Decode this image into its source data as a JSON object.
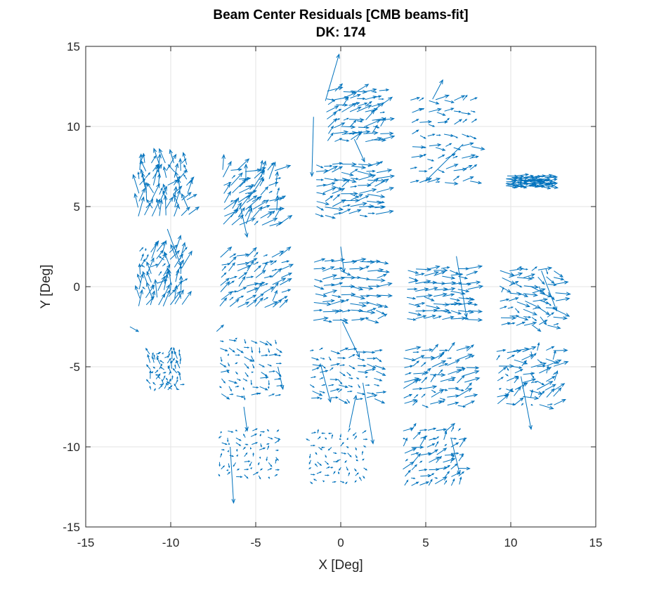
{
  "chart_data": {
    "type": "quiver",
    "title": "Beam Center Residuals [CMB beams-fit]",
    "subtitle": "DK: 174",
    "xlabel": "X [Deg]",
    "ylabel": "Y [Deg]",
    "xlim": [
      -15,
      15
    ],
    "ylim": [
      -15,
      15
    ],
    "xticks": [
      -15,
      -10,
      -5,
      0,
      5,
      10,
      15
    ],
    "yticks": [
      -15,
      -10,
      -5,
      0,
      5,
      10,
      15
    ],
    "grid": true,
    "arrow_color": "#0072BD",
    "tiles": [
      {
        "name": "r1c1",
        "xmin": -12.1,
        "xmax": -8.8,
        "ymin": 4.2,
        "ymax": 7.9,
        "dx": 0.12,
        "dy": 0.75,
        "var": 0.5
      },
      {
        "name": "r1c2",
        "xmin": -7.1,
        "xmax": -3.6,
        "ymin": 3.6,
        "ymax": 7.5,
        "dx": 0.45,
        "dy": 0.55,
        "var": 0.5
      },
      {
        "name": "r1c3",
        "xmin": -1.7,
        "xmax": 2.3,
        "ymin": 4.3,
        "ymax": 7.8,
        "dx": 0.7,
        "dy": 0.1,
        "var": 0.35
      },
      {
        "name": "r1c4",
        "xmin": -1.0,
        "xmax": 2.5,
        "ymin": 8.9,
        "ymax": 12.4,
        "dx": 0.6,
        "dy": 0.25,
        "var": 0.35
      },
      {
        "name": "r1c5",
        "xmin": 3.9,
        "xmax": 7.9,
        "ymin": 6.2,
        "ymax": 12.0,
        "dx": 0.5,
        "dy": 0.1,
        "var": 0.3
      },
      {
        "name": "r1c6",
        "xmin": 9.6,
        "xmax": 12.2,
        "ymin": 6.2,
        "ymax": 6.9,
        "dx": 0.6,
        "dy": 0.0,
        "var": 0.15
      },
      {
        "name": "r2c1",
        "xmin": -12.0,
        "xmax": -9.2,
        "ymin": -1.4,
        "ymax": 2.4,
        "dx": 0.1,
        "dy": 0.6,
        "var": 0.5
      },
      {
        "name": "r2c2",
        "xmin": -7.3,
        "xmax": -3.3,
        "ymin": -1.5,
        "ymax": 2.1,
        "dx": 0.5,
        "dy": 0.35,
        "var": 0.3
      },
      {
        "name": "r2c3",
        "xmin": -1.8,
        "xmax": 2.4,
        "ymin": -2.3,
        "ymax": 1.8,
        "dx": 0.7,
        "dy": 0.0,
        "var": 0.3
      },
      {
        "name": "r2c4",
        "xmin": 3.7,
        "xmax": 7.7,
        "ymin": -2.2,
        "ymax": 1.3,
        "dx": 0.7,
        "dy": 0.0,
        "var": 0.25
      },
      {
        "name": "r2c5",
        "xmin": 9.2,
        "xmax": 12.8,
        "ymin": -2.6,
        "ymax": 1.3,
        "dx": 0.5,
        "dy": -0.1,
        "var": 0.4
      },
      {
        "name": "r3c1",
        "xmin": -11.3,
        "xmax": -9.3,
        "ymin": -6.6,
        "ymax": -4.0,
        "dx": 0.0,
        "dy": 0.25,
        "var": 0.25
      },
      {
        "name": "r3c2",
        "xmin": -7.3,
        "xmax": -3.6,
        "ymin": -7.0,
        "ymax": -3.1,
        "dx": 0.25,
        "dy": -0.1,
        "var": 0.25
      },
      {
        "name": "r3c3",
        "xmin": -2.0,
        "xmax": 2.3,
        "ymin": -7.2,
        "ymax": -3.8,
        "dx": 0.35,
        "dy": -0.05,
        "var": 0.25
      },
      {
        "name": "r3c4",
        "xmin": 3.5,
        "xmax": 7.6,
        "ymin": -7.6,
        "ymax": -3.8,
        "dx": 0.55,
        "dy": 0.2,
        "var": 0.35
      },
      {
        "name": "r3c5",
        "xmin": 9.0,
        "xmax": 12.8,
        "ymin": -7.6,
        "ymax": -3.8,
        "dx": 0.5,
        "dy": 0.15,
        "var": 0.45
      },
      {
        "name": "r4c1",
        "xmin": -7.3,
        "xmax": -3.6,
        "ymin": -12.0,
        "ymax": -8.8,
        "dx": 0.1,
        "dy": 0.0,
        "var": 0.25
      },
      {
        "name": "r4c2",
        "xmin": -2.0,
        "xmax": 1.5,
        "ymin": -12.4,
        "ymax": -8.9,
        "dx": 0.05,
        "dy": 0.0,
        "var": 0.25
      },
      {
        "name": "r4c3",
        "xmin": 3.5,
        "xmax": 7.2,
        "ymin": -12.6,
        "ymax": -8.8,
        "dx": 0.4,
        "dy": 0.25,
        "var": 0.3
      }
    ],
    "outlier_vectors": [
      {
        "x": -10.2,
        "y": 3.6,
        "dx": 0.8,
        "dy": -2.3
      },
      {
        "x": -5.9,
        "y": 5.0,
        "dx": 0.4,
        "dy": -1.9
      },
      {
        "x": -1.6,
        "y": 10.6,
        "dx": -0.1,
        "dy": -3.7
      },
      {
        "x": -0.9,
        "y": 11.6,
        "dx": 0.8,
        "dy": 2.9
      },
      {
        "x": 0.0,
        "y": 2.5,
        "dx": 0.2,
        "dy": -1.6
      },
      {
        "x": 0.1,
        "y": -2.2,
        "dx": 1.0,
        "dy": -2.2
      },
      {
        "x": 0.5,
        "y": -8.8,
        "dx": 0.4,
        "dy": 2.0
      },
      {
        "x": 0.8,
        "y": 9.2,
        "dx": 0.6,
        "dy": -1.4
      },
      {
        "x": -1.2,
        "y": -4.8,
        "dx": 0.6,
        "dy": -2.4
      },
      {
        "x": 1.3,
        "y": -6.0,
        "dx": 0.6,
        "dy": -3.8
      },
      {
        "x": 5.4,
        "y": 11.7,
        "dx": 0.6,
        "dy": 1.2
      },
      {
        "x": 7.2,
        "y": 8.9,
        "dx": -2.2,
        "dy": -2.3
      },
      {
        "x": 6.8,
        "y": 1.9,
        "dx": 0.6,
        "dy": -3.8
      },
      {
        "x": 6.5,
        "y": -9.5,
        "dx": 0.5,
        "dy": -2.2
      },
      {
        "x": 11.8,
        "y": 1.0,
        "dx": 0.9,
        "dy": -2.5
      },
      {
        "x": 10.6,
        "y": -5.6,
        "dx": 0.6,
        "dy": -3.3
      },
      {
        "x": -12.4,
        "y": -2.5,
        "dx": 0.5,
        "dy": -0.3
      },
      {
        "x": -7.3,
        "y": -2.8,
        "dx": 0.4,
        "dy": 0.4
      },
      {
        "x": -3.7,
        "y": -5.0,
        "dx": 0.3,
        "dy": -1.4
      },
      {
        "x": -6.5,
        "y": -10.0,
        "dx": 0.2,
        "dy": -3.5
      },
      {
        "x": -5.7,
        "y": -7.5,
        "dx": 0.2,
        "dy": -1.5
      }
    ]
  }
}
